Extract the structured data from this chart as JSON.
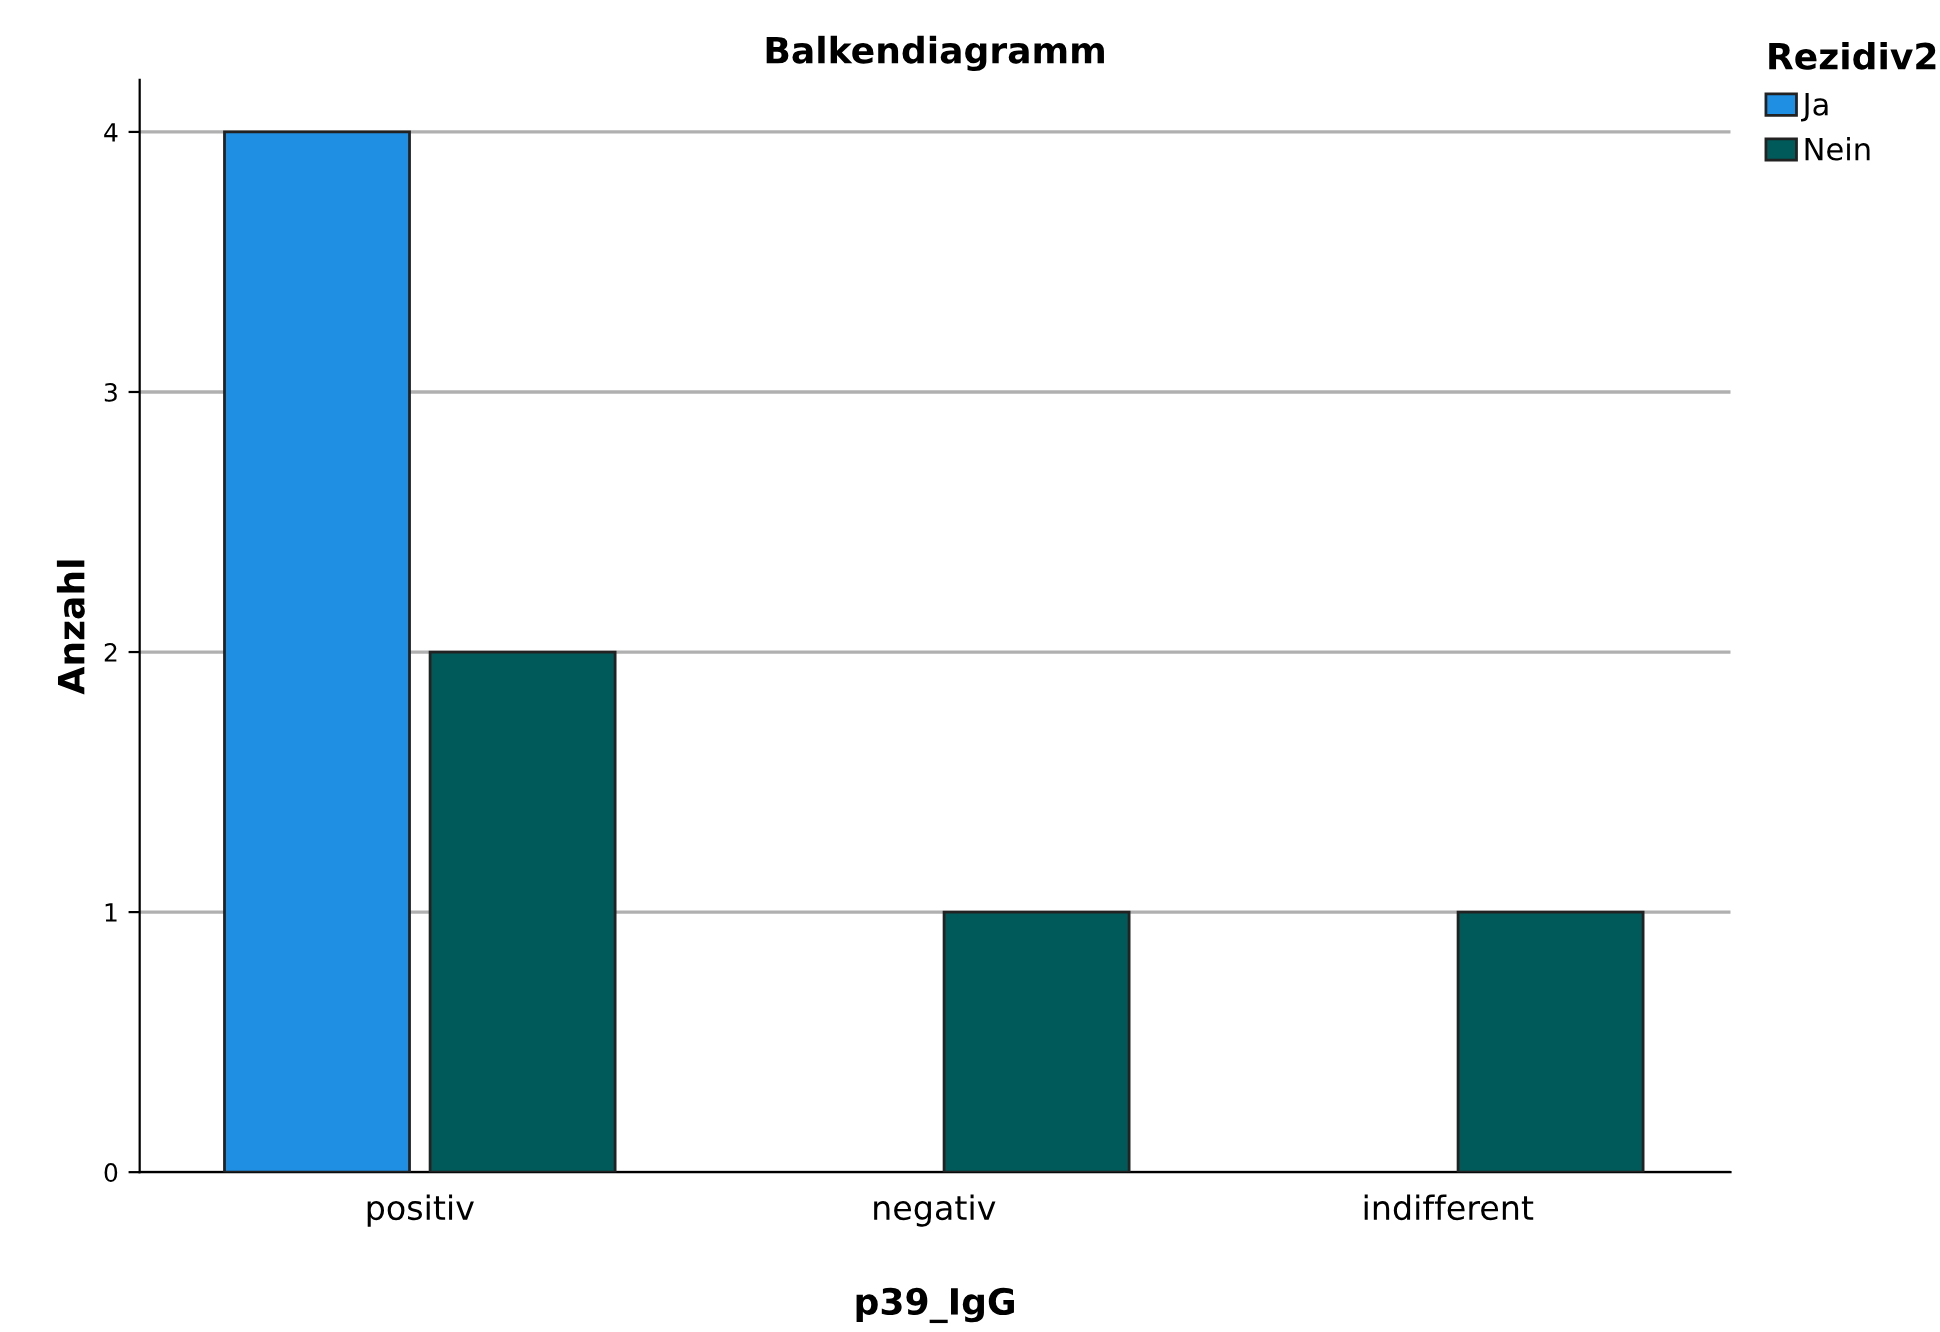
{
  "chart_data": {
    "type": "bar",
    "title": "Balkendiagramm",
    "xlabel": "p39_IgG",
    "ylabel": "Anzahl",
    "legend_title": "Rezidiv2",
    "categories": [
      "positiv",
      "negativ",
      "indifferent"
    ],
    "series": [
      {
        "name": "Ja",
        "color": "#1f8fe3",
        "values": [
          4,
          null,
          null
        ]
      },
      {
        "name": "Nein",
        "color": "#005a5a",
        "values": [
          2,
          1,
          1
        ]
      }
    ],
    "ylim": [
      0,
      4.2
    ],
    "yticks": [
      0,
      1,
      2,
      3,
      4
    ],
    "grid": "y",
    "legend": "top right"
  }
}
